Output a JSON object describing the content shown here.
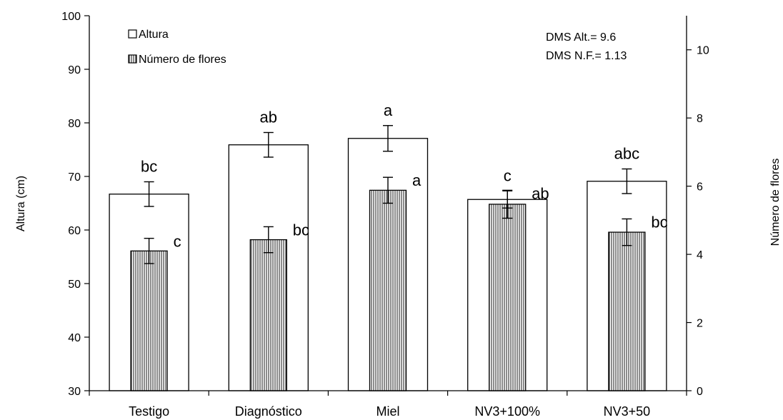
{
  "chart_data": {
    "type": "bar",
    "categories": [
      "Testigo",
      "Diagnóstico",
      "Miel",
      "NV3+100%",
      "NV3+50"
    ],
    "ylabel": "Altura (cm)",
    "y2label": "Número de flores",
    "ylim": [
      30,
      100
    ],
    "y2lim": [
      0,
      11
    ],
    "yticks": [
      30,
      40,
      50,
      60,
      70,
      80,
      90,
      100
    ],
    "y2ticks": [
      0,
      2,
      4,
      6,
      8,
      10
    ],
    "grid": false,
    "legend_position": "top-left",
    "series": [
      {
        "name": "Altura",
        "axis": "left",
        "fill": "white",
        "values": [
          66.7,
          75.9,
          77.1,
          65.7,
          69.1
        ],
        "errors": [
          2.3,
          2.3,
          2.4,
          1.6,
          2.3
        ],
        "labels": [
          "bc",
          "ab",
          "a",
          "c",
          "abc"
        ]
      },
      {
        "name": "Número de flores",
        "axis": "right",
        "fill": "vertical-stripes",
        "values": [
          4.1,
          4.43,
          5.88,
          5.47,
          4.65
        ],
        "errors": [
          0.37,
          0.38,
          0.38,
          0.41,
          0.39
        ],
        "labels": [
          "c",
          "bc",
          "a",
          "ab",
          "bc"
        ]
      }
    ],
    "annotations": [
      "DMS Alt.= 9.6",
      "DMS N.F.= 1.13"
    ]
  },
  "colors": {
    "stroke": "#000000",
    "background": "#ffffff",
    "stripe": "#000000"
  }
}
